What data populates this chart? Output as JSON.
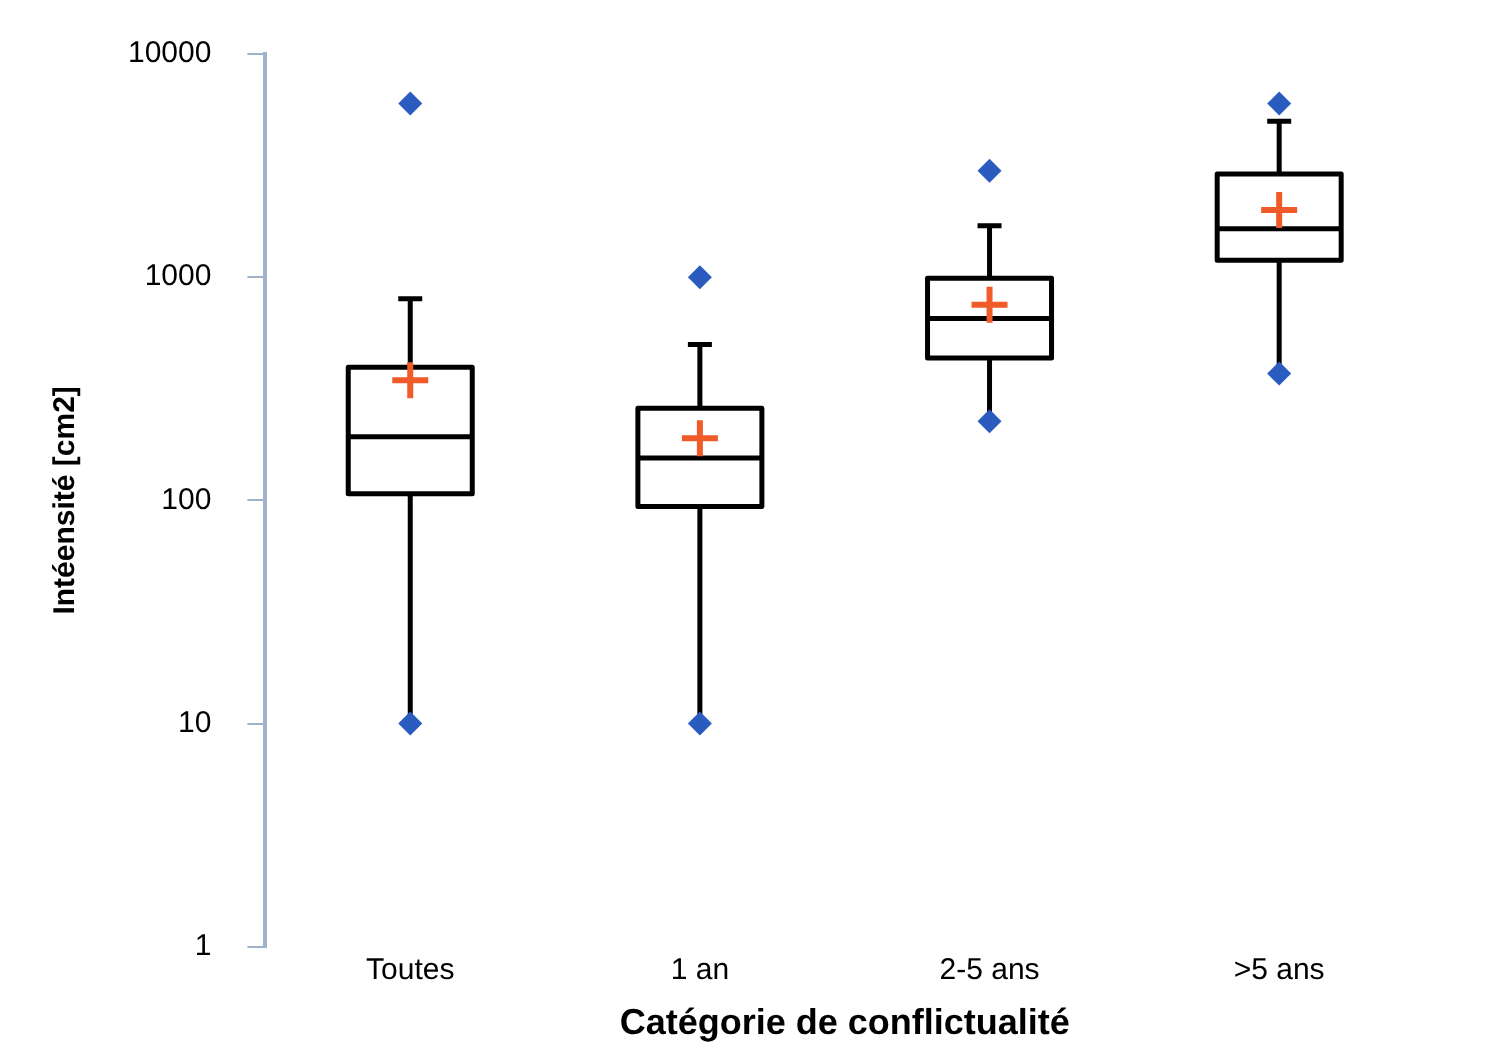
{
  "chart_data": {
    "type": "box",
    "xlabel": "Catégorie de conflictualité",
    "ylabel": "Intéensité [cm2]",
    "categories": [
      "Toutes",
      "1 an",
      "2-5 ans",
      ">5 ans"
    ],
    "boxes": [
      {
        "low": 10,
        "q1": 107,
        "median": 193,
        "q3": 395,
        "high": 800,
        "mean": 345,
        "outliers": [
          10,
          6000
        ]
      },
      {
        "low": 10,
        "q1": 94,
        "median": 155,
        "q3": 259,
        "high": 500,
        "mean": 190,
        "outliers": [
          10,
          1000
        ]
      },
      {
        "low": 226,
        "q1": 434,
        "median": 653,
        "q3": 990,
        "high": 1700,
        "mean": 753,
        "outliers": [
          226,
          3000
        ]
      },
      {
        "low": 370,
        "q1": 1190,
        "median": 1650,
        "q3": 2900,
        "high": 5000,
        "mean": 2000,
        "outliers": [
          370,
          6000
        ]
      }
    ],
    "ylim": [
      1,
      10000
    ],
    "yticks": [
      1,
      10,
      100,
      1000,
      10000
    ],
    "log": true,
    "grid": false
  }
}
